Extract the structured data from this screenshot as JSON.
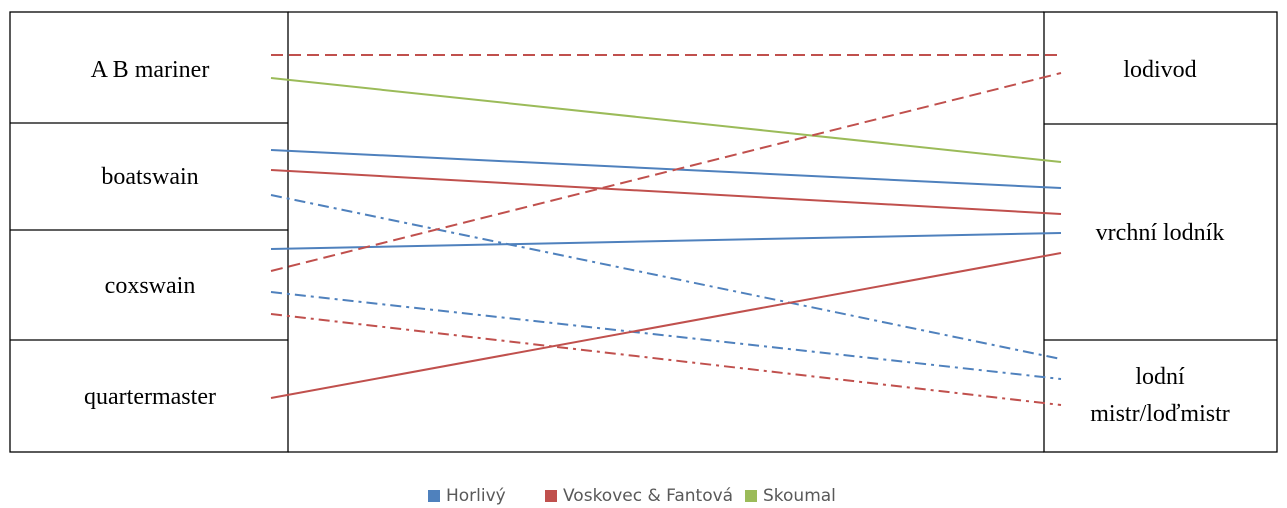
{
  "diagram": {
    "left_terms": [
      {
        "id": "ab",
        "label": "A B mariner"
      },
      {
        "id": "boatswain",
        "label": "boatswain"
      },
      {
        "id": "coxswain",
        "label": "coxswain"
      },
      {
        "id": "quartermaster",
        "label": "quartermaster"
      }
    ],
    "right_terms": [
      {
        "id": "lodivod",
        "lines": [
          "lodivod"
        ]
      },
      {
        "id": "vrchni",
        "lines": [
          "vrchní lodník"
        ]
      },
      {
        "id": "lodni",
        "lines": [
          "lodní",
          "mistr/loďmistr"
        ]
      }
    ],
    "translators": [
      {
        "id": "horlivy",
        "name": "Horlivý",
        "color": "#4F81BD"
      },
      {
        "id": "voskovec",
        "name": "Voskovec & Fantová",
        "color": "#C0504D"
      },
      {
        "id": "skoumal",
        "name": "Skoumal",
        "color": "#9BBB59"
      }
    ],
    "connections": [
      {
        "translator": "voskovec",
        "from": "ab",
        "to": "lodivod",
        "style": "dashed"
      },
      {
        "translator": "skoumal",
        "from": "ab",
        "to": "vrchni",
        "style": "solid"
      },
      {
        "translator": "horlivy",
        "from": "boatswain",
        "to": "vrchni",
        "style": "solid"
      },
      {
        "translator": "voskovec",
        "from": "boatswain",
        "to": "vrchni",
        "style": "solid"
      },
      {
        "translator": "horlivy",
        "from": "boatswain",
        "to": "lodni",
        "style": "dashdot"
      },
      {
        "translator": "horlivy",
        "from": "coxswain",
        "to": "vrchni",
        "style": "solid"
      },
      {
        "translator": "voskovec",
        "from": "coxswain",
        "to": "lodivod",
        "style": "dashed"
      },
      {
        "translator": "horlivy",
        "from": "coxswain",
        "to": "lodni",
        "style": "dashdot"
      },
      {
        "translator": "voskovec",
        "from": "coxswain",
        "to": "lodni",
        "style": "dashdot"
      },
      {
        "translator": "voskovec",
        "from": "quartermaster",
        "to": "vrchni",
        "style": "solid"
      }
    ]
  }
}
